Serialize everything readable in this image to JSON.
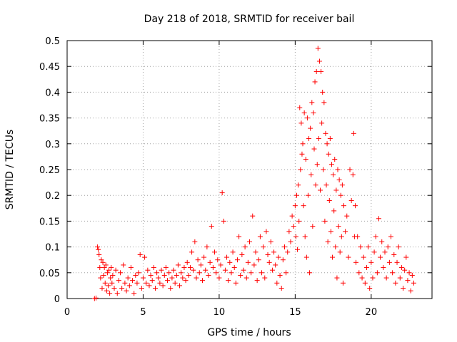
{
  "chart_data": {
    "type": "scatter",
    "title": "Day 218 of 2018, SRMTID for receiver bail",
    "xlabel": "GPS time / hours",
    "ylabel": "SRMTID / TECUs",
    "xlim": [
      0,
      24
    ],
    "ylim": [
      0,
      0.5
    ],
    "xticks": [
      0,
      5,
      10,
      15,
      20
    ],
    "yticks": [
      0,
      0.05,
      0.1,
      0.15,
      0.2,
      0.25,
      0.3,
      0.35,
      0.4,
      0.45,
      0.5
    ],
    "xtick_labels": [
      "0",
      "5",
      "10",
      "15",
      "20"
    ],
    "ytick_labels": [
      "0",
      "0.05",
      "0.1",
      "0.15",
      "0.2",
      "0.25",
      "0.3",
      "0.35",
      "0.4",
      "0.45",
      "0.5"
    ],
    "grid": true,
    "marker": "plus",
    "color": "#ff0000",
    "series": [
      {
        "name": "SRMTID",
        "points": [
          [
            1.8,
            0.0
          ],
          [
            1.9,
            0.001
          ],
          [
            2.0,
            0.1
          ],
          [
            2.05,
            0.095
          ],
          [
            2.1,
            0.085
          ],
          [
            2.15,
            0.06
          ],
          [
            2.2,
            0.04
          ],
          [
            2.25,
            0.075
          ],
          [
            2.3,
            0.02
          ],
          [
            2.35,
            0.07
          ],
          [
            2.4,
            0.045
          ],
          [
            2.45,
            0.06
          ],
          [
            2.5,
            0.03
          ],
          [
            2.55,
            0.065
          ],
          [
            2.6,
            0.015
          ],
          [
            2.65,
            0.05
          ],
          [
            2.7,
            0.025
          ],
          [
            2.75,
            0.055
          ],
          [
            2.8,
            0.01
          ],
          [
            2.85,
            0.04
          ],
          [
            2.9,
            0.06
          ],
          [
            2.95,
            0.03
          ],
          [
            3.0,
            0.045
          ],
          [
            3.1,
            0.02
          ],
          [
            3.2,
            0.055
          ],
          [
            3.3,
            0.01
          ],
          [
            3.4,
            0.035
          ],
          [
            3.5,
            0.05
          ],
          [
            3.6,
            0.02
          ],
          [
            3.7,
            0.065
          ],
          [
            3.8,
            0.03
          ],
          [
            3.9,
            0.015
          ],
          [
            4.0,
            0.04
          ],
          [
            4.1,
            0.025
          ],
          [
            4.2,
            0.06
          ],
          [
            4.3,
            0.035
          ],
          [
            4.4,
            0.01
          ],
          [
            4.5,
            0.045
          ],
          [
            4.6,
            0.03
          ],
          [
            4.7,
            0.05
          ],
          [
            4.8,
            0.085
          ],
          [
            4.9,
            0.02
          ],
          [
            5.0,
            0.04
          ],
          [
            5.1,
            0.08
          ],
          [
            5.2,
            0.03
          ],
          [
            5.3,
            0.055
          ],
          [
            5.4,
            0.025
          ],
          [
            5.5,
            0.045
          ],
          [
            5.6,
            0.035
          ],
          [
            5.7,
            0.06
          ],
          [
            5.8,
            0.02
          ],
          [
            5.9,
            0.05
          ],
          [
            6.0,
            0.04
          ],
          [
            6.1,
            0.03
          ],
          [
            6.2,
            0.055
          ],
          [
            6.3,
            0.025
          ],
          [
            6.4,
            0.045
          ],
          [
            6.5,
            0.06
          ],
          [
            6.6,
            0.035
          ],
          [
            6.7,
            0.05
          ],
          [
            6.8,
            0.02
          ],
          [
            6.9,
            0.04
          ],
          [
            7.0,
            0.055
          ],
          [
            7.1,
            0.03
          ],
          [
            7.2,
            0.045
          ],
          [
            7.3,
            0.065
          ],
          [
            7.4,
            0.025
          ],
          [
            7.5,
            0.05
          ],
          [
            7.6,
            0.04
          ],
          [
            7.7,
            0.06
          ],
          [
            7.8,
            0.035
          ],
          [
            7.9,
            0.07
          ],
          [
            8.0,
            0.045
          ],
          [
            8.1,
            0.06
          ],
          [
            8.2,
            0.09
          ],
          [
            8.3,
            0.055
          ],
          [
            8.4,
            0.11
          ],
          [
            8.5,
            0.04
          ],
          [
            8.6,
            0.075
          ],
          [
            8.7,
            0.05
          ],
          [
            8.8,
            0.065
          ],
          [
            8.9,
            0.035
          ],
          [
            9.0,
            0.08
          ],
          [
            9.1,
            0.055
          ],
          [
            9.2,
            0.1
          ],
          [
            9.3,
            0.045
          ],
          [
            9.4,
            0.07
          ],
          [
            9.5,
            0.14
          ],
          [
            9.6,
            0.06
          ],
          [
            9.7,
            0.09
          ],
          [
            9.8,
            0.05
          ],
          [
            9.9,
            0.075
          ],
          [
            10.0,
            0.04
          ],
          [
            10.1,
            0.065
          ],
          [
            10.2,
            0.205
          ],
          [
            10.3,
            0.15
          ],
          [
            10.4,
            0.055
          ],
          [
            10.5,
            0.08
          ],
          [
            10.6,
            0.035
          ],
          [
            10.7,
            0.07
          ],
          [
            10.8,
            0.05
          ],
          [
            10.9,
            0.09
          ],
          [
            11.0,
            0.06
          ],
          [
            11.1,
            0.03
          ],
          [
            11.2,
            0.075
          ],
          [
            11.3,
            0.12
          ],
          [
            11.4,
            0.045
          ],
          [
            11.5,
            0.085
          ],
          [
            11.6,
            0.055
          ],
          [
            11.7,
            0.1
          ],
          [
            11.8,
            0.04
          ],
          [
            11.9,
            0.07
          ],
          [
            12.0,
            0.11
          ],
          [
            12.1,
            0.05
          ],
          [
            12.2,
            0.16
          ],
          [
            12.3,
            0.065
          ],
          [
            12.4,
            0.09
          ],
          [
            12.5,
            0.035
          ],
          [
            12.6,
            0.075
          ],
          [
            12.7,
            0.12
          ],
          [
            12.8,
            0.05
          ],
          [
            12.9,
            0.1
          ],
          [
            13.0,
            0.04
          ],
          [
            13.1,
            0.13
          ],
          [
            13.2,
            0.085
          ],
          [
            13.3,
            0.07
          ],
          [
            13.4,
            0.11
          ],
          [
            13.5,
            0.055
          ],
          [
            13.6,
            0.09
          ],
          [
            13.7,
            0.065
          ],
          [
            13.8,
            0.03
          ],
          [
            13.9,
            0.08
          ],
          [
            14.0,
            0.045
          ],
          [
            14.1,
            0.02
          ],
          [
            14.2,
            0.075
          ],
          [
            14.3,
            0.1
          ],
          [
            14.4,
            0.05
          ],
          [
            14.5,
            0.09
          ],
          [
            14.6,
            0.13
          ],
          [
            14.7,
            0.11
          ],
          [
            14.8,
            0.16
          ],
          [
            14.9,
            0.14
          ],
          [
            15.0,
            0.18
          ],
          [
            15.05,
            0.12
          ],
          [
            15.1,
            0.2
          ],
          [
            15.15,
            0.095
          ],
          [
            15.2,
            0.22
          ],
          [
            15.25,
            0.15
          ],
          [
            15.3,
            0.37
          ],
          [
            15.35,
            0.25
          ],
          [
            15.4,
            0.34
          ],
          [
            15.45,
            0.28
          ],
          [
            15.5,
            0.3
          ],
          [
            15.55,
            0.18
          ],
          [
            15.6,
            0.36
          ],
          [
            15.65,
            0.12
          ],
          [
            15.7,
            0.27
          ],
          [
            15.75,
            0.08
          ],
          [
            15.8,
            0.35
          ],
          [
            15.85,
            0.2
          ],
          [
            15.9,
            0.31
          ],
          [
            15.95,
            0.05
          ],
          [
            16.0,
            0.33
          ],
          [
            16.05,
            0.24
          ],
          [
            16.1,
            0.38
          ],
          [
            16.15,
            0.14
          ],
          [
            16.2,
            0.36
          ],
          [
            16.25,
            0.29
          ],
          [
            16.3,
            0.42
          ],
          [
            16.35,
            0.22
          ],
          [
            16.4,
            0.44
          ],
          [
            16.45,
            0.26
          ],
          [
            16.5,
            0.485
          ],
          [
            16.55,
            0.31
          ],
          [
            16.6,
            0.46
          ],
          [
            16.65,
            0.21
          ],
          [
            16.7,
            0.44
          ],
          [
            16.75,
            0.34
          ],
          [
            16.8,
            0.4
          ],
          [
            16.85,
            0.25
          ],
          [
            16.9,
            0.38
          ],
          [
            16.95,
            0.15
          ],
          [
            17.0,
            0.32
          ],
          [
            17.05,
            0.22
          ],
          [
            17.1,
            0.3
          ],
          [
            17.15,
            0.11
          ],
          [
            17.2,
            0.28
          ],
          [
            17.25,
            0.19
          ],
          [
            17.3,
            0.31
          ],
          [
            17.35,
            0.13
          ],
          [
            17.4,
            0.26
          ],
          [
            17.45,
            0.08
          ],
          [
            17.5,
            0.24
          ],
          [
            17.55,
            0.17
          ],
          [
            17.6,
            0.27
          ],
          [
            17.65,
            0.1
          ],
          [
            17.7,
            0.21
          ],
          [
            17.75,
            0.04
          ],
          [
            17.8,
            0.25
          ],
          [
            17.85,
            0.14
          ],
          [
            17.9,
            0.23
          ],
          [
            17.95,
            0.09
          ],
          [
            18.0,
            0.2
          ],
          [
            18.05,
            0.12
          ],
          [
            18.1,
            0.22
          ],
          [
            18.15,
            0.03
          ],
          [
            18.2,
            0.18
          ],
          [
            18.3,
            0.13
          ],
          [
            18.4,
            0.16
          ],
          [
            18.5,
            0.08
          ],
          [
            18.6,
            0.25
          ],
          [
            18.7,
            0.19
          ],
          [
            18.8,
            0.24
          ],
          [
            18.85,
            0.32
          ],
          [
            18.9,
            0.12
          ],
          [
            18.95,
            0.18
          ],
          [
            19.0,
            0.07
          ],
          [
            19.1,
            0.12
          ],
          [
            19.2,
            0.05
          ],
          [
            19.3,
            0.1
          ],
          [
            19.4,
            0.04
          ],
          [
            19.5,
            0.08
          ],
          [
            19.6,
            0.03
          ],
          [
            19.7,
            0.06
          ],
          [
            19.8,
            0.1
          ],
          [
            19.9,
            0.02
          ],
          [
            20.0,
            0.07
          ],
          [
            20.1,
            0.04
          ],
          [
            20.2,
            0.09
          ],
          [
            20.3,
            0.12
          ],
          [
            20.4,
            0.05
          ],
          [
            20.5,
            0.155
          ],
          [
            20.6,
            0.08
          ],
          [
            20.7,
            0.11
          ],
          [
            20.8,
            0.06
          ],
          [
            20.9,
            0.09
          ],
          [
            21.0,
            0.04
          ],
          [
            21.1,
            0.1
          ],
          [
            21.2,
            0.07
          ],
          [
            21.3,
            0.12
          ],
          [
            21.4,
            0.05
          ],
          [
            21.5,
            0.085
          ],
          [
            21.6,
            0.03
          ],
          [
            21.7,
            0.07
          ],
          [
            21.8,
            0.1
          ],
          [
            21.9,
            0.04
          ],
          [
            22.0,
            0.06
          ],
          [
            22.1,
            0.02
          ],
          [
            22.2,
            0.055
          ],
          [
            22.3,
            0.08
          ],
          [
            22.4,
            0.035
          ],
          [
            22.5,
            0.05
          ],
          [
            22.6,
            0.015
          ],
          [
            22.7,
            0.045
          ],
          [
            22.8,
            0.03
          ]
        ]
      }
    ]
  }
}
